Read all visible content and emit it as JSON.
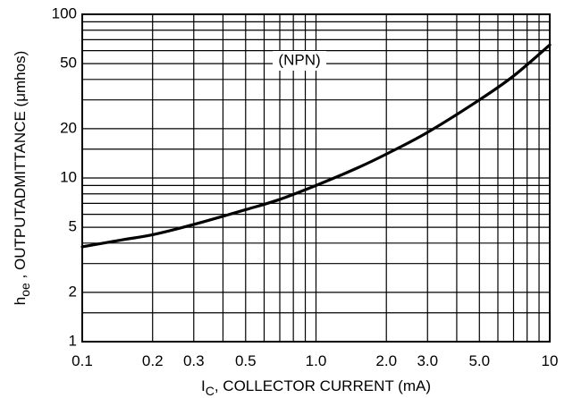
{
  "chart_data": {
    "type": "line",
    "title": "",
    "xlabel_main": "I",
    "xlabel_sub": "C",
    "xlabel_rest": ", COLLECTOR CURRENT (mA)",
    "ylabel_main": "h",
    "ylabel_sub": "oe",
    "ylabel_rest": " , OUTPUTADMITTANCE (μmhos)",
    "x_scale": "log",
    "y_scale": "log",
    "xlim": [
      0.1,
      10
    ],
    "ylim": [
      1,
      100
    ],
    "grid": true,
    "x_ticks": [
      {
        "value": 0.1,
        "label": "0.1"
      },
      {
        "value": 0.2,
        "label": "0.2"
      },
      {
        "value": 0.3,
        "label": "0.3"
      },
      {
        "value": 0.5,
        "label": "0.5"
      },
      {
        "value": 1.0,
        "label": "1.0"
      },
      {
        "value": 2.0,
        "label": "2.0"
      },
      {
        "value": 3.0,
        "label": "3.0"
      },
      {
        "value": 5.0,
        "label": "5.0"
      },
      {
        "value": 10,
        "label": "10"
      }
    ],
    "y_ticks": [
      {
        "value": 1,
        "label": "1"
      },
      {
        "value": 2,
        "label": "2"
      },
      {
        "value": 5,
        "label": "5"
      },
      {
        "value": 10,
        "label": "10"
      },
      {
        "value": 20,
        "label": "20"
      },
      {
        "value": 50,
        "label": "50"
      },
      {
        "value": 100,
        "label": "100"
      }
    ],
    "x_grid": [
      0.1,
      0.2,
      0.3,
      0.4,
      0.5,
      0.6,
      0.7,
      0.8,
      0.9,
      1,
      2,
      3,
      4,
      5,
      6,
      7,
      8,
      9,
      10
    ],
    "y_grid": [
      1,
      1.5,
      2,
      3,
      4,
      5,
      6,
      7,
      8,
      9,
      10,
      15,
      20,
      30,
      40,
      50,
      60,
      70,
      80,
      90,
      100
    ],
    "annotation": {
      "text": "(NPN)",
      "x": 0.85,
      "y": 52
    },
    "series": [
      {
        "color": "#000000",
        "x": [
          0.1,
          0.15,
          0.2,
          0.3,
          0.5,
          0.7,
          1.0,
          1.5,
          2.0,
          3.0,
          5.0,
          7.0,
          10
        ],
        "y": [
          3.8,
          4.2,
          4.5,
          5.2,
          6.4,
          7.4,
          9.0,
          11.5,
          14,
          19,
          30,
          42,
          65
        ]
      }
    ]
  }
}
